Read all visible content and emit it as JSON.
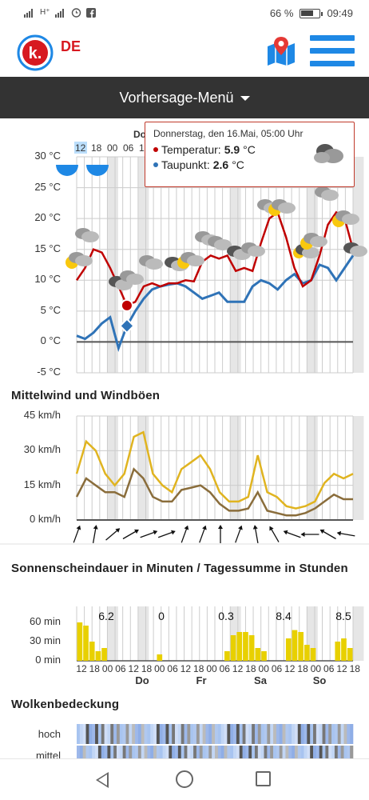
{
  "status_bar": {
    "signal": "▮▮▮",
    "network": "H⁺",
    "icons": "⏰ f",
    "battery_percent": "66 %",
    "battery_level": 0.66,
    "time": "09:49"
  },
  "header": {
    "logo_letter": "k.",
    "region": "DE",
    "menu_icon": "hamburger-icon",
    "map_icon": "map-pin-icon"
  },
  "nav": {
    "menu_label": "Vorhersage-Menü"
  },
  "colors": {
    "temperature": "#c00000",
    "dewpoint": "#2f73b7",
    "wind_mean": "#8a6d3b",
    "wind_gust": "#e0b420",
    "sunshine": "#e8d000",
    "accent_blue": "#1e88e5"
  },
  "temperature_chart": {
    "top_hour_labels": [
      "12",
      "18",
      "00",
      "06",
      "12"
    ],
    "top_day_label": "Do",
    "y_ticks": [
      "30 °C",
      "25 °C",
      "20 °C",
      "15 °C",
      "10 °C",
      "5 °C",
      "0 °C",
      "-5 °C"
    ]
  },
  "tooltip": {
    "title": "Donnerstag, den 16.Mai, 05:00 Uhr",
    "temp_label": "Temperatur:",
    "temp_value": "5.9",
    "temp_unit": "°C",
    "dew_label": "Taupunkt:",
    "dew_value": "2.6",
    "dew_unit": "°C",
    "icon": "cloud-icon"
  },
  "wind": {
    "title": "Mittelwind und Windböen",
    "y_ticks": [
      "45 km/h",
      "30 km/h",
      "15 km/h",
      "0 km/h"
    ]
  },
  "sunshine": {
    "title": "Sonnenscheindauer in Minuten / Tagessumme in Stunden",
    "y_ticks": [
      "60 min",
      "30 min",
      "0 min"
    ],
    "daily_totals": [
      "6.2",
      "0",
      "0.3",
      "8.4",
      "8.5"
    ],
    "hour_labels": [
      "12",
      "18",
      "00",
      "06",
      "12",
      "18",
      "00",
      "06",
      "12",
      "18",
      "00",
      "06",
      "12",
      "18",
      "00",
      "06",
      "12",
      "18",
      "00",
      "06",
      "12",
      "18"
    ],
    "day_labels": [
      "Do",
      "Fr",
      "Sa",
      "So"
    ]
  },
  "clouds": {
    "title": "Wolkenbedeckung",
    "rows": [
      "hoch",
      "mittel"
    ]
  },
  "chart_data": [
    {
      "type": "line",
      "x_unit": "hour",
      "ylim": [
        -5,
        30
      ],
      "series": [
        {
          "values": [
            10,
            12,
            15,
            14.5,
            12,
            9,
            5.9,
            6.5,
            9,
            9.5,
            9,
            9.5,
            9.5,
            10,
            9.8,
            13,
            14,
            13.5,
            14,
            11.5,
            12,
            11.5,
            16,
            20,
            21,
            17,
            12,
            9,
            10,
            14,
            19,
            21,
            20,
            15
          ]
        },
        {
          "values": [
            1,
            0.5,
            1.5,
            3,
            4,
            -1,
            2.6,
            5,
            7,
            8.5,
            9,
            9.3,
            9.5,
            9,
            8,
            7,
            7.5,
            8,
            6.5,
            6.5,
            6.5,
            9,
            10,
            9.5,
            8.5,
            10,
            11,
            9.5,
            10,
            12.5,
            12,
            10,
            12,
            14
          ]
        }
      ]
    },
    {
      "type": "line",
      "x_unit": "hour",
      "ylim": [
        0,
        45
      ],
      "series": [
        {
          "values": [
            20,
            34,
            30,
            20,
            15,
            20,
            36,
            38,
            20,
            15,
            12,
            22,
            25,
            28,
            22,
            12,
            8,
            8,
            10,
            28,
            12,
            10,
            6,
            5,
            6,
            8,
            16,
            20,
            18,
            20
          ]
        },
        {
          "values": [
            10,
            18,
            15,
            12,
            12,
            10,
            22,
            18,
            10,
            8,
            8,
            13,
            14,
            15,
            12,
            7,
            4,
            4,
            5,
            12,
            4,
            3,
            2,
            2,
            3,
            5,
            8,
            11,
            9,
            9
          ]
        }
      ]
    },
    {
      "type": "bar",
      "ylim": [
        0,
        60
      ],
      "values": [
        60,
        55,
        30,
        15,
        20,
        0,
        0,
        0,
        0,
        0,
        0,
        0,
        0,
        10,
        0,
        0,
        0,
        0,
        0,
        0,
        0,
        0,
        0,
        0,
        15,
        40,
        45,
        45,
        40,
        20,
        15,
        0,
        0,
        0,
        35,
        48,
        45,
        25,
        20,
        0,
        0,
        0,
        30,
        35,
        20
      ]
    }
  ]
}
